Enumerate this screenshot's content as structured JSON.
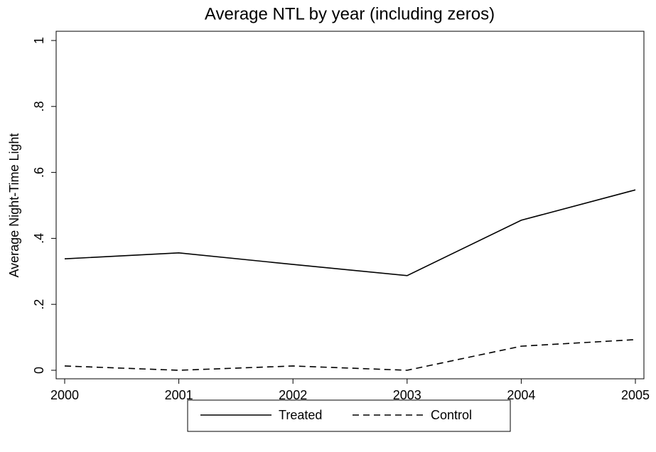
{
  "chart_data": {
    "type": "line",
    "title": "Average NTL by year (including zeros)",
    "y_label": "Average Night-Time Light",
    "x": [
      2000,
      2001,
      2002,
      2003,
      2004,
      2005
    ],
    "series": [
      {
        "name": "Treated",
        "color": "#000000",
        "dash": "solid",
        "values": [
          0.338,
          0.356,
          0.321,
          0.287,
          0.455,
          0.547
        ]
      },
      {
        "name": "Control",
        "color": "#000000",
        "dash": "dashed",
        "values": [
          0.013,
          0,
          0.013,
          0,
          0.073,
          0.093
        ]
      }
    ],
    "xlim": [
      2000,
      2005
    ],
    "xticks": [
      2000,
      2001,
      2002,
      2003,
      2004,
      2005
    ],
    "ylim": [
      0,
      1
    ],
    "yticks": [
      0,
      {
        "value": 0.2,
        "label": ".2"
      },
      {
        "value": 0.4,
        "label": ".4"
      },
      {
        "value": 0.6,
        "label": ".6"
      },
      {
        "value": 0.8,
        "label": ".8"
      },
      1
    ],
    "legend": "bottom"
  }
}
